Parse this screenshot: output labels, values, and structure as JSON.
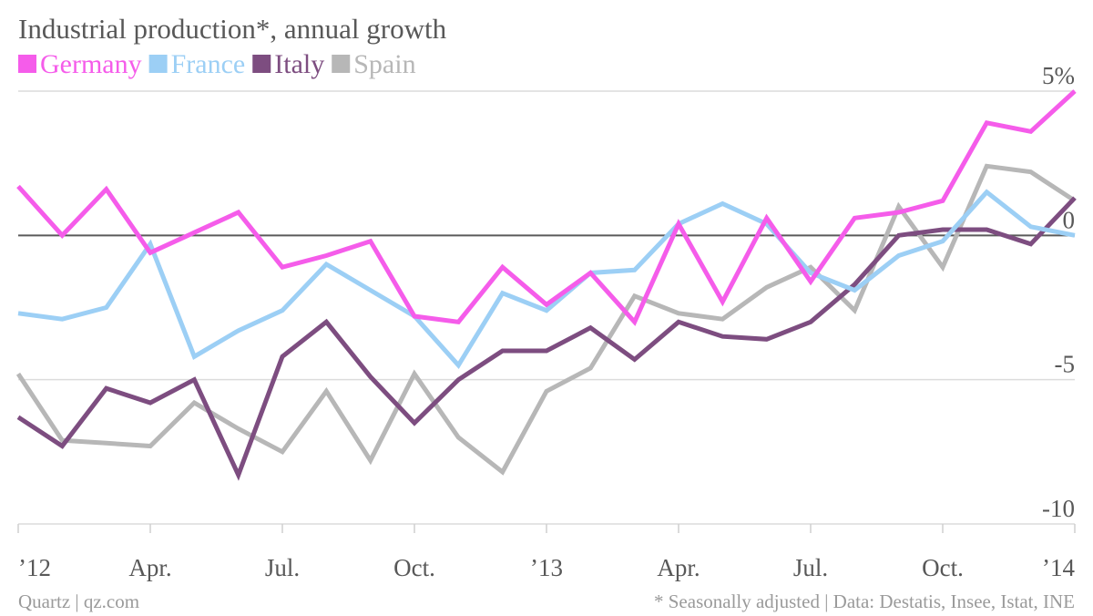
{
  "chart_data": {
    "type": "line",
    "title": "Industrial production*, annual growth",
    "x": [
      "Jan 2012",
      "Feb 2012",
      "Mar 2012",
      "Apr 2012",
      "May 2012",
      "Jun 2012",
      "Jul 2012",
      "Aug 2012",
      "Sep 2012",
      "Oct 2012",
      "Nov 2012",
      "Dec 2012",
      "Jan 2013",
      "Feb 2013",
      "Mar 2013",
      "Apr 2013",
      "May 2013",
      "Jun 2013",
      "Jul 2013",
      "Aug 2013",
      "Sep 2013",
      "Oct 2013",
      "Nov 2013",
      "Dec 2013",
      "Jan 2014"
    ],
    "x_tick_labels": [
      {
        "x": "Jan 2012",
        "label": "’12"
      },
      {
        "x": "Apr 2012",
        "label": "Apr."
      },
      {
        "x": "Jul 2012",
        "label": "Jul."
      },
      {
        "x": "Oct 2012",
        "label": "Oct."
      },
      {
        "x": "Jan 2013",
        "label": "’13"
      },
      {
        "x": "Apr 2013",
        "label": "Apr."
      },
      {
        "x": "Jul 2013",
        "label": "Jul."
      },
      {
        "x": "Oct 2013",
        "label": "Oct."
      },
      {
        "x": "Jan 2014",
        "label": "’14"
      }
    ],
    "y_ticks": [
      {
        "value": 5,
        "label": "5%"
      },
      {
        "value": 0,
        "label": "0"
      },
      {
        "value": -5,
        "label": "-5"
      },
      {
        "value": -10,
        "label": "-10"
      }
    ],
    "ylim": [
      -10,
      5
    ],
    "grid": true,
    "legend_position": "top-left",
    "series": [
      {
        "name": "Germany",
        "color": "#f55cea",
        "values": [
          1.7,
          0.0,
          1.6,
          -0.6,
          0.1,
          0.8,
          -1.1,
          -0.7,
          -0.2,
          -2.8,
          -3.0,
          -1.1,
          -2.4,
          -1.3,
          -3.0,
          0.4,
          -2.3,
          0.6,
          -1.6,
          0.6,
          0.8,
          1.2,
          3.9,
          3.6,
          5.0
        ]
      },
      {
        "name": "France",
        "color": "#9ccff5",
        "values": [
          -2.7,
          -2.9,
          -2.5,
          -0.3,
          -4.2,
          -3.3,
          -2.6,
          -1.0,
          -1.9,
          -2.8,
          -4.5,
          -2.0,
          -2.6,
          -1.3,
          -1.2,
          0.4,
          1.1,
          0.4,
          -1.3,
          -1.9,
          -0.7,
          -0.2,
          1.5,
          0.3,
          0.0
        ]
      },
      {
        "name": "Italy",
        "color": "#7d4d80",
        "values": [
          -6.3,
          -7.3,
          -5.3,
          -5.8,
          -5.0,
          -8.3,
          -4.2,
          -3.0,
          -4.9,
          -6.5,
          -5.0,
          -4.0,
          -4.0,
          -3.2,
          -4.3,
          -3.0,
          -3.5,
          -3.6,
          -3.0,
          -1.7,
          0.0,
          0.2,
          0.2,
          -0.3,
          1.3
        ]
      },
      {
        "name": "Spain",
        "color": "#b7b7b7",
        "values": [
          -4.8,
          -7.1,
          -7.2,
          -7.3,
          -5.8,
          -6.7,
          -7.5,
          -5.4,
          -7.8,
          -4.8,
          -7.0,
          -8.2,
          -5.4,
          -4.6,
          -2.1,
          -2.7,
          -2.9,
          -1.8,
          -1.1,
          -2.6,
          1.0,
          -1.1,
          2.4,
          2.2,
          1.2
        ]
      }
    ]
  },
  "footer": {
    "source_left": "Quartz | qz.com",
    "source_right": "* Seasonally adjusted | Data: Destatis, Insee, Istat, INE"
  }
}
